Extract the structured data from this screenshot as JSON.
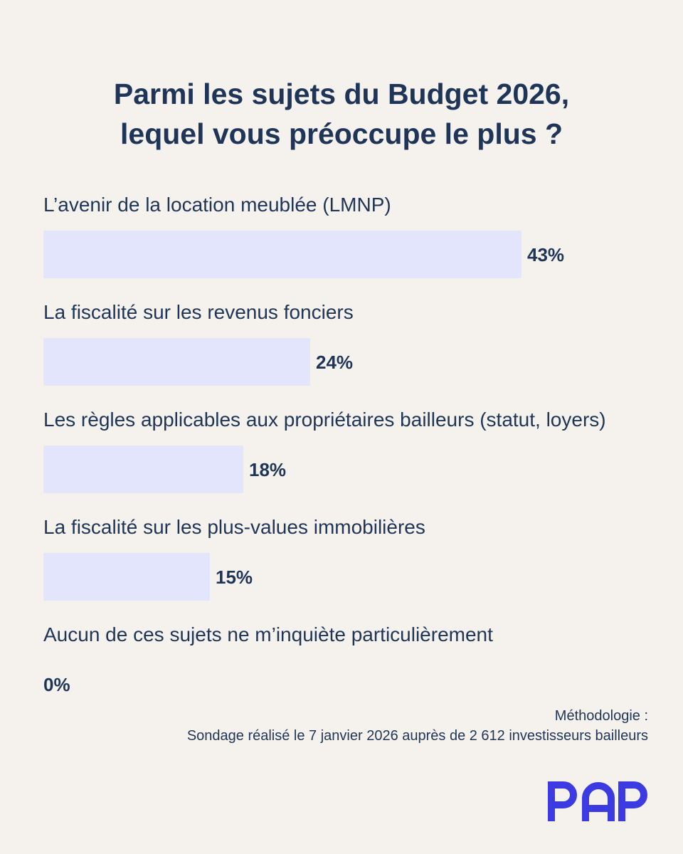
{
  "title": {
    "line1": "Parmi les sujets du Budget 2026,",
    "line2": "lequel vous préoccupe le plus ?"
  },
  "chart_data": {
    "type": "bar",
    "orientation": "horizontal",
    "categories": [
      "L’avenir de la location meublée (LMNP)",
      "La fiscalité sur les revenus fonciers",
      "Les règles applicables aux propriétaires bailleurs (statut, loyers)",
      "La fiscalité sur les plus-values immobilières",
      "Aucun de ces sujets ne m’inquiète particulièrement"
    ],
    "values": [
      43,
      24,
      18,
      15,
      0
    ],
    "value_labels": [
      "43%",
      "24%",
      "18%",
      "15%",
      "0%"
    ],
    "unit": "%",
    "xlim": [
      0,
      43
    ],
    "grid": false,
    "bar_color": "#e2e5fb"
  },
  "methodology": {
    "heading": "Méthodologie :",
    "text": "Sondage réalisé le 7 janvier 2026 auprès de 2 612 investisseurs bailleurs"
  },
  "logo": {
    "text": "PAP",
    "color": "#3c3be2"
  }
}
